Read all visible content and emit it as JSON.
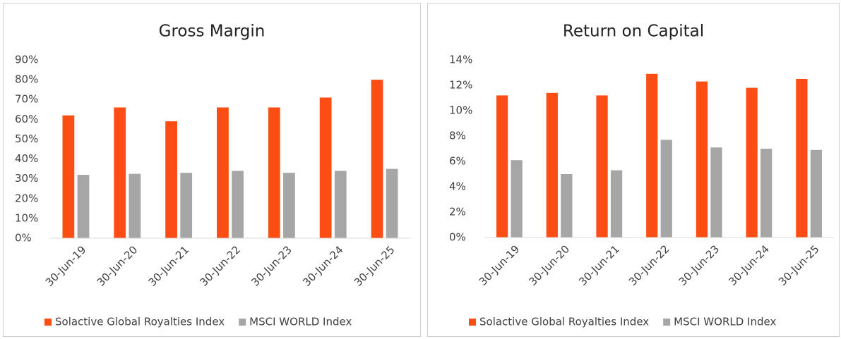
{
  "chart_data": [
    {
      "type": "bar",
      "title": "Gross Margin",
      "categories": [
        "30-Jun-19",
        "30-Jun-20",
        "30-Jun-21",
        "30-Jun-22",
        "30-Jun-23",
        "30-Jun-24",
        "30-Jun-25"
      ],
      "series": [
        {
          "name": "Solactive Global Royalties Index",
          "color": "#fc4e14",
          "values": [
            62,
            66,
            59,
            66,
            66,
            71,
            80
          ]
        },
        {
          "name": "MSCI WORLD Index",
          "color": "#a6a6a6",
          "values": [
            32,
            32.5,
            33,
            34,
            33,
            34,
            35
          ]
        }
      ],
      "ylim": [
        0,
        90
      ],
      "yticks": [
        {
          "value": 0,
          "label": "0%"
        },
        {
          "value": 10,
          "label": "10%"
        },
        {
          "value": 20,
          "label": "20%"
        },
        {
          "value": 30,
          "label": "30%"
        },
        {
          "value": 40,
          "label": "40%"
        },
        {
          "value": 50,
          "label": "50%"
        },
        {
          "value": 60,
          "label": "60%"
        },
        {
          "value": 70,
          "label": "70%"
        },
        {
          "value": 80,
          "label": "80%"
        },
        {
          "value": 90,
          "label": "90%"
        }
      ],
      "grid": false,
      "legend": "bottom"
    },
    {
      "type": "bar",
      "title": "Return on Capital",
      "categories": [
        "30-Jun-19",
        "30-Jun-20",
        "30-Jun-21",
        "30-Jun-22",
        "30-Jun-23",
        "30-Jun-24",
        "30-Jun-25"
      ],
      "series": [
        {
          "name": "Solactive Global Royalties Index",
          "color": "#fc4e14",
          "values": [
            11.2,
            11.4,
            11.2,
            12.9,
            12.3,
            11.8,
            12.5
          ]
        },
        {
          "name": "MSCI WORLD Index",
          "color": "#a6a6a6",
          "values": [
            6.1,
            5.0,
            5.3,
            7.7,
            7.1,
            7.0,
            6.9
          ]
        }
      ],
      "ylim": [
        0,
        14
      ],
      "yticks": [
        {
          "value": 0,
          "label": "0%"
        },
        {
          "value": 2,
          "label": "2%"
        },
        {
          "value": 4,
          "label": "4%"
        },
        {
          "value": 6,
          "label": "6%"
        },
        {
          "value": 8,
          "label": "8%"
        },
        {
          "value": 10,
          "label": "10%"
        },
        {
          "value": 12,
          "label": "12%"
        },
        {
          "value": 14,
          "label": "14%"
        }
      ],
      "grid": false,
      "legend": "bottom"
    }
  ]
}
